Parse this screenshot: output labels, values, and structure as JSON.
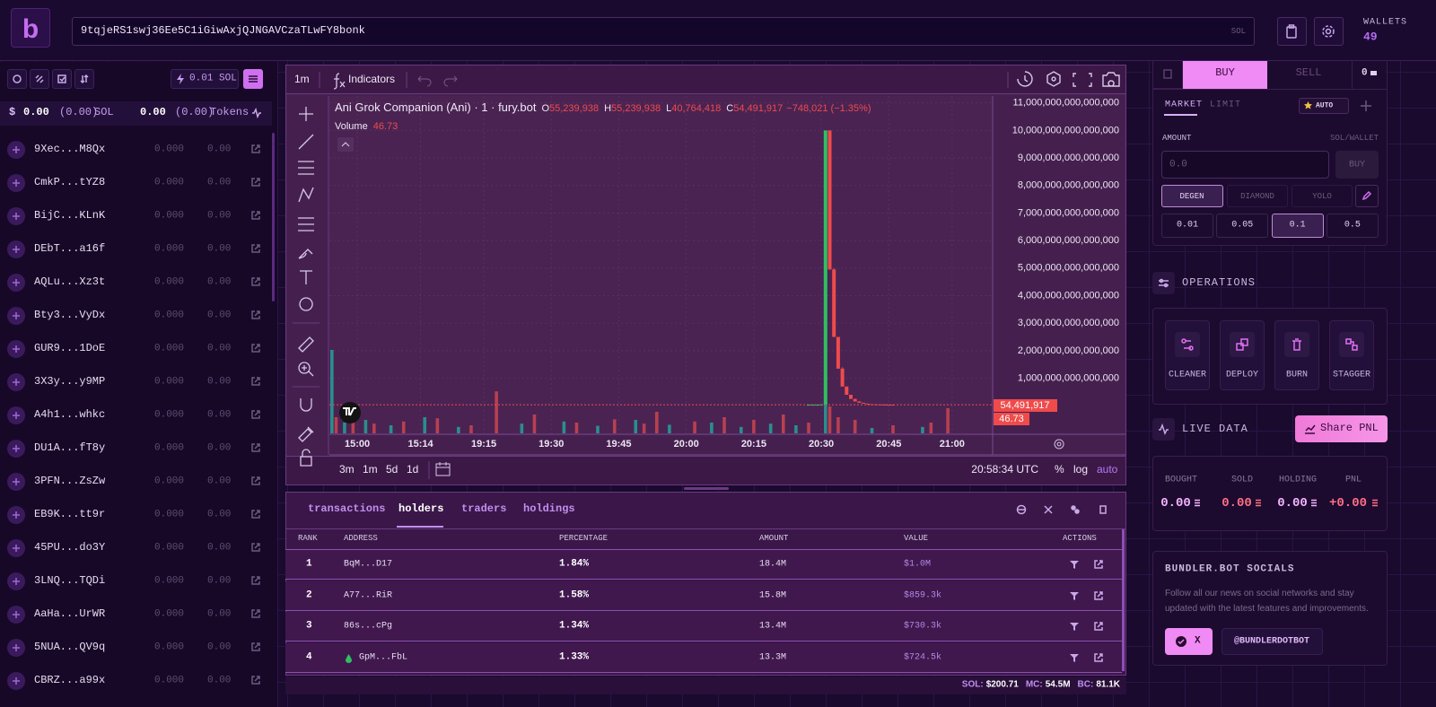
{
  "header": {
    "logo": "b",
    "token_address": "9tqjeRS1swj36Ee5C1iGiwAxjQJNGAVCzaTLwFY8bonk",
    "address_unit": "SOL",
    "wallets_label": "WALLETS",
    "wallets_count": "49"
  },
  "sidebar": {
    "priority_fee": "0.01 SOL",
    "sol_symbol": "$",
    "sol_balance": "0.00",
    "sol_change": "(0.00)",
    "sol_unit": "SOL",
    "token_balance": "0.00",
    "token_change": "(0.00)",
    "token_unit": "Tokens",
    "wallets": [
      {
        "name": "9Xec...M8Qx",
        "sol": "0.000",
        "tokens": "0.00"
      },
      {
        "name": "CmkP...tYZ8",
        "sol": "0.000",
        "tokens": "0.00"
      },
      {
        "name": "BijC...KLnK",
        "sol": "0.000",
        "tokens": "0.00"
      },
      {
        "name": "DEbT...a16f",
        "sol": "0.000",
        "tokens": "0.00"
      },
      {
        "name": "AQLu...Xz3t",
        "sol": "0.000",
        "tokens": "0.00"
      },
      {
        "name": "Bty3...VyDx",
        "sol": "0.000",
        "tokens": "0.00"
      },
      {
        "name": "GUR9...1DoE",
        "sol": "0.000",
        "tokens": "0.00"
      },
      {
        "name": "3X3y...y9MP",
        "sol": "0.000",
        "tokens": "0.00"
      },
      {
        "name": "A4h1...whkc",
        "sol": "0.000",
        "tokens": "0.00"
      },
      {
        "name": "DU1A...fT8y",
        "sol": "0.000",
        "tokens": "0.00"
      },
      {
        "name": "3PFN...ZsZw",
        "sol": "0.000",
        "tokens": "0.00"
      },
      {
        "name": "EB9K...tt9r",
        "sol": "0.000",
        "tokens": "0.00"
      },
      {
        "name": "45PU...do3Y",
        "sol": "0.000",
        "tokens": "0.00"
      },
      {
        "name": "3LNQ...TQDi",
        "sol": "0.000",
        "tokens": "0.00"
      },
      {
        "name": "AaHa...UrWR",
        "sol": "0.000",
        "tokens": "0.00"
      },
      {
        "name": "5NUA...QV9q",
        "sol": "0.000",
        "tokens": "0.00"
      },
      {
        "name": "CBRZ...a99x",
        "sol": "0.000",
        "tokens": "0.00"
      }
    ]
  },
  "chart_toolbar": {
    "interval": "1m",
    "indicators": "Indicators"
  },
  "chart_data": {
    "type": "candlestick",
    "title": "Ani Grok Companion (Ani) · 1 · fury.bot",
    "ohlc": {
      "open_label": "O",
      "open": "55,239,938",
      "high_label": "H",
      "high": "55,239,938",
      "low_label": "L",
      "low": "40,764,418",
      "close_label": "C",
      "close": "54,491,917",
      "change": "−748,021 (−1.35%)"
    },
    "volume_label": "Volume",
    "volume_value": "46.73",
    "last_price_label": "54,491,917",
    "up_color": "#2fbf62",
    "down_color": "#ef4b4b",
    "x": [
      113,
      114,
      115,
      116,
      117,
      118,
      119,
      120,
      121,
      122,
      123,
      124,
      125,
      126,
      127,
      128,
      129,
      130,
      131,
      132,
      133
    ],
    "open": [
      40000000000000.0,
      40000000000000.0,
      40000000000000.0,
      40000000000000.0,
      50000000000000.0,
      1e+16,
      4950000000000000.0,
      2500000000000000.0,
      1350000000000000.0,
      700000000000000.0,
      400000000000000.0,
      250000000000000.0,
      160000000000000.0,
      110000000000000.0,
      80000000000000.0,
      60000000000000.0,
      55000000000000.0,
      50000000000000.0,
      46000000000000.0,
      43000000000000.0,
      40000000000000.0
    ],
    "high": [
      50000000000000.0,
      50000000000000.0,
      50000000000000.0,
      50000000000000.0,
      1e+16,
      1e+16,
      5000000000000000.0,
      2500000000000000.0,
      1400000000000000.0,
      700000000000000.0,
      400000000000000.0,
      260000000000000.0,
      160000000000000.0,
      110000000000000.0,
      80000000000000.0,
      62000000000000.0,
      56000000000000.0,
      51000000000000.0,
      47000000000000.0,
      44000000000000.0,
      41000000000000.0
    ],
    "low": [
      30000000000000.0,
      30000000000000.0,
      30000000000000.0,
      30000000000000.0,
      50000000000000.0,
      4950000000000000.0,
      2500000000000000.0,
      1350000000000000.0,
      700000000000000.0,
      400000000000000.0,
      250000000000000.0,
      160000000000000.0,
      110000000000000.0,
      80000000000000.0,
      60000000000000.0,
      55000000000000.0,
      50000000000000.0,
      46000000000000.0,
      43000000000000.0,
      40000000000000.0,
      38000000000000.0
    ],
    "close": [
      40000000000000.0,
      40000000000000.0,
      40000000000000.0,
      50000000000000.0,
      1e+16,
      4950000000000000.0,
      2500000000000000.0,
      1350000000000000.0,
      700000000000000.0,
      400000000000000.0,
      250000000000000.0,
      160000000000000.0,
      110000000000000.0,
      80000000000000.0,
      60000000000000.0,
      55000000000000.0,
      50000000000000.0,
      46000000000000.0,
      43000000000000.0,
      40000000000000.0,
      38000000000000.0
    ],
    "volume": {
      "up": {
        "color": "#2a8f8c",
        "x": [
          0,
          3,
          8,
          14,
          22,
          30,
          45,
          55,
          63,
          72,
          80,
          90,
          97,
          104,
          110,
          117,
          128,
          140
        ],
        "values": [
          155,
          20,
          25,
          15,
          30,
          12,
          18,
          22,
          14,
          25,
          16,
          20,
          12,
          18,
          15,
          60,
          10,
          12
        ]
      },
      "down": {
        "color": "#b8404f",
        "x": [
          1,
          5,
          10,
          17,
          25,
          33,
          39,
          48,
          58,
          67,
          74,
          77,
          86,
          93,
          100,
          107,
          113,
          118,
          120,
          124,
          133,
          142,
          146
        ],
        "values": [
          30,
          40,
          18,
          22,
          28,
          15,
          78,
          35,
          20,
          26,
          18,
          40,
          22,
          30,
          25,
          35,
          20,
          50,
          30,
          25,
          15,
          20,
          46.73
        ]
      }
    },
    "xlim": [
      -0.6,
      156.4
    ],
    "xticks": [
      {
        "value": 6,
        "label": "15:00"
      },
      {
        "value": 21,
        "label": "15:14"
      },
      {
        "value": 36,
        "label": "19:15"
      },
      {
        "value": 52,
        "label": "19:30"
      },
      {
        "value": 68,
        "label": "19:45"
      },
      {
        "value": 84,
        "label": "20:00"
      },
      {
        "value": 100,
        "label": "20:15"
      },
      {
        "value": 116,
        "label": "20:30"
      },
      {
        "value": 132,
        "label": "20:45"
      },
      {
        "value": 147,
        "label": "21:00"
      }
    ],
    "ylim": [
      -1000000000000000.0,
      1.125e+16
    ],
    "yticks": [
      {
        "value": 1000000000000000.0,
        "label": "1,000,000,000,000,000"
      },
      {
        "value": 2000000000000000.0,
        "label": "2,000,000,000,000,000"
      },
      {
        "value": 3000000000000000.0,
        "label": "3,000,000,000,000,000"
      },
      {
        "value": 4000000000000000.0,
        "label": "4,000,000,000,000,000"
      },
      {
        "value": 5000000000000000.0,
        "label": "5,000,000,000,000,000"
      },
      {
        "value": 6000000000000000.0,
        "label": "6,000,000,000,000,000"
      },
      {
        "value": 7000000000000000.0,
        "label": "7,000,000,000,000,000"
      },
      {
        "value": 8000000000000000.0,
        "label": "8,000,000,000,000,000"
      },
      {
        "value": 9000000000000000.0,
        "label": "9,000,000,000,000,000"
      },
      {
        "value": 1e+16,
        "label": "10,000,000,000,000,000"
      },
      {
        "value": 1.1e+16,
        "label": "11,000,000,000,000,000"
      }
    ],
    "grid": true,
    "range_buttons": [
      "3m",
      "1m",
      "5d",
      "1d"
    ],
    "clock": "20:58:34 UTC",
    "scale_options": [
      "%",
      "log",
      "auto"
    ]
  },
  "holders": {
    "tabs": [
      "transactions",
      "holders",
      "traders",
      "holdings"
    ],
    "active_tab": 1,
    "columns": [
      "RANK",
      "ADDRESS",
      "PERCENTAGE",
      "AMOUNT",
      "VALUE",
      "ACTIONS"
    ],
    "rows": [
      [
        "1",
        "BqM...D17",
        "1.84%",
        "18.4M",
        "$1.0M"
      ],
      [
        "2",
        "A77...RiR",
        "1.58%",
        "15.8M",
        "$859.3k"
      ],
      [
        "3",
        "86s...cPg",
        "1.34%",
        "13.4M",
        "$730.3k"
      ],
      [
        "4",
        "GpM...FbL",
        "1.33%",
        "13.3M",
        "$724.5k"
      ]
    ]
  },
  "footer": {
    "sol_label": "SOL:",
    "sol_price": "$200.71",
    "mc_label": "MC:",
    "mc": "54.5M",
    "bc_label": "BC:",
    "bc": "81.1K"
  },
  "trade": {
    "buy_tab": "BUY",
    "sell_tab": "SELL",
    "wallet_count": "0",
    "order_types": [
      "MARKET",
      "LIMIT"
    ],
    "auto": "AUTO",
    "amount_label": "AMOUNT",
    "amount_unit": "SOL/WALLET",
    "amount_placeholder": "0.0",
    "buy_button": "BUY",
    "modes": [
      "DEGEN",
      "DIAMOND",
      "YOLO"
    ],
    "presets": [
      "0.01",
      "0.05",
      "0.1",
      "0.5"
    ]
  },
  "operations": {
    "title": "OPERATIONS",
    "items": [
      "CLEANER",
      "DEPLOY",
      "BURN",
      "STAGGER"
    ]
  },
  "live_data": {
    "title": "LIVE DATA",
    "share": "Share PNL",
    "stats": [
      {
        "label": "BOUGHT",
        "value": "0.00"
      },
      {
        "label": "SOLD",
        "value": "0.00"
      },
      {
        "label": "HOLDING",
        "value": "0.00"
      },
      {
        "label": "PNL",
        "value": "+0.00"
      }
    ]
  },
  "socials": {
    "title": "BUNDLER.BOT SOCIALS",
    "description": "Follow all our news on social networks and stay updated with the latest features and improvements.",
    "x_button": "X",
    "handle": "@BUNDLERDOTBOT"
  }
}
